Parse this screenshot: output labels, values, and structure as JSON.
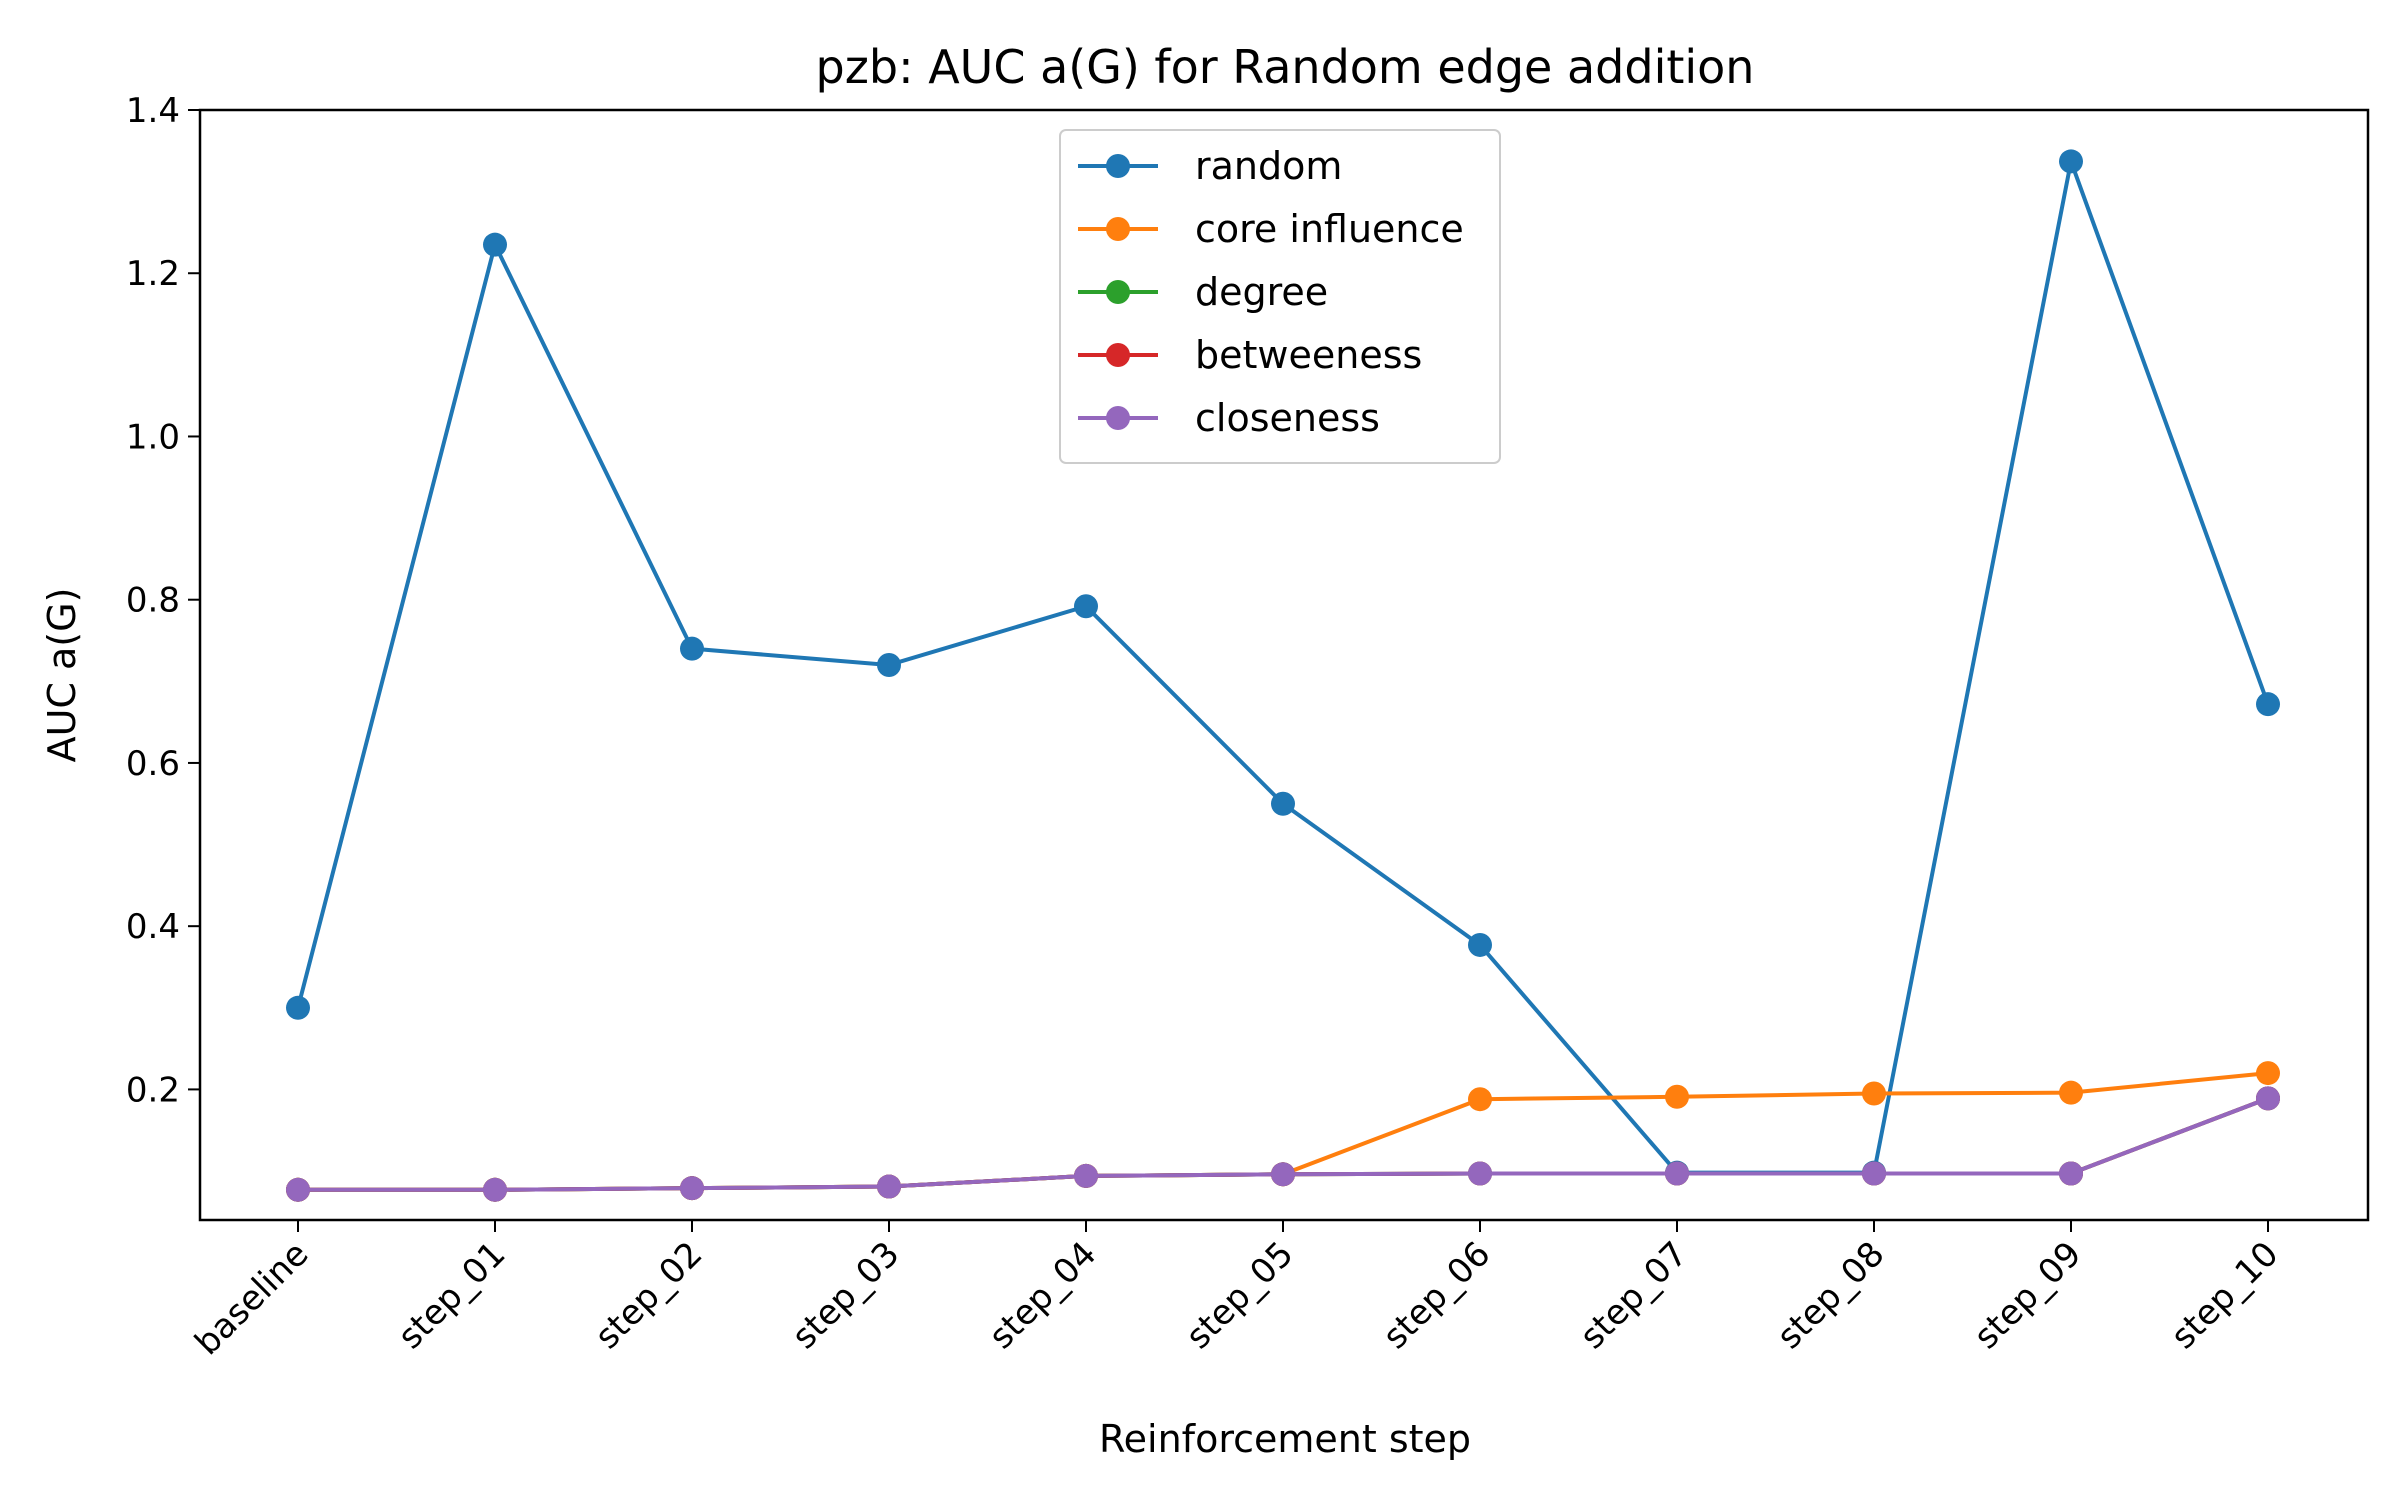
{
  "chart_data": {
    "type": "line",
    "title": "pzb: AUC a(G) for Random edge addition",
    "xlabel": "Reinforcement step",
    "ylabel": "AUC a(G)",
    "ylim": [
      0.04,
      1.4
    ],
    "yticks": [
      "0.2",
      "0.4",
      "0.6",
      "0.8",
      "1.0",
      "1.2",
      "1.4"
    ],
    "grid": false,
    "legend_position": "upper center",
    "categories": [
      "baseline",
      "step_01",
      "step_02",
      "step_03",
      "step_04",
      "step_05",
      "step_06",
      "step_07",
      "step_08",
      "step_09",
      "step_10"
    ],
    "series": [
      {
        "name": "random",
        "color": "#1f77b4",
        "values": [
          0.3,
          1.235,
          0.74,
          0.72,
          0.792,
          0.55,
          0.377,
          0.098,
          0.098,
          1.337,
          0.672
        ]
      },
      {
        "name": "core influence",
        "color": "#ff7f0e",
        "values": [
          0.077,
          0.077,
          0.079,
          0.081,
          0.094,
          0.096,
          0.188,
          0.191,
          0.195,
          0.196,
          0.22
        ]
      },
      {
        "name": "degree",
        "color": "#2ca02c",
        "values": [
          0.077,
          0.077,
          0.079,
          0.081,
          0.094,
          0.096,
          0.097,
          0.097,
          0.097,
          0.097,
          0.189
        ]
      },
      {
        "name": "betweeness",
        "color": "#d62728",
        "values": [
          0.077,
          0.077,
          0.079,
          0.081,
          0.094,
          0.096,
          0.097,
          0.097,
          0.097,
          0.097,
          0.189
        ]
      },
      {
        "name": "closeness",
        "color": "#9467bd",
        "values": [
          0.077,
          0.077,
          0.079,
          0.081,
          0.094,
          0.096,
          0.097,
          0.097,
          0.097,
          0.097,
          0.189
        ]
      }
    ]
  }
}
